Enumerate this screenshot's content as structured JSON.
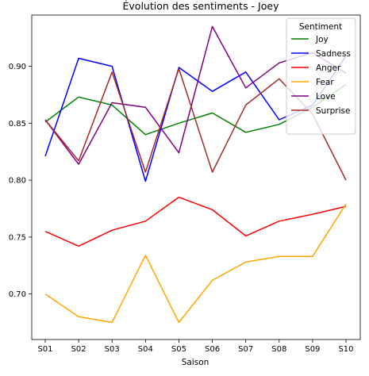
{
  "chart_data": {
    "type": "line",
    "title": "Évolution des sentiments - Joey",
    "xlabel": "Saison",
    "ylabel": "",
    "categories": [
      "S01",
      "S02",
      "S03",
      "S04",
      "S05",
      "S06",
      "S07",
      "S08",
      "S09",
      "S10"
    ],
    "ylim": [
      0.66,
      0.945
    ],
    "yticks": [
      "0.70",
      "0.75",
      "0.80",
      "0.85",
      "0.90"
    ],
    "legend": {
      "title": "Sentiment",
      "placement": "top-right"
    },
    "grid": false,
    "series": [
      {
        "name": "Joy",
        "color": "#008000",
        "values": [
          0.851,
          0.873,
          0.866,
          0.84,
          0.85,
          0.859,
          0.842,
          0.849,
          0.864,
          0.884
        ]
      },
      {
        "name": "Sadness",
        "color": "#0000ff",
        "values": [
          0.821,
          0.907,
          0.9,
          0.799,
          0.899,
          0.878,
          0.895,
          0.853,
          0.866,
          0.909
        ]
      },
      {
        "name": "Anger",
        "color": "#ff0000",
        "values": [
          0.755,
          0.742,
          0.756,
          0.764,
          0.785,
          0.774,
          0.751,
          0.764,
          0.77,
          0.777
        ]
      },
      {
        "name": "Fear",
        "color": "#ffa500",
        "values": [
          0.7,
          0.68,
          0.675,
          0.734,
          0.675,
          0.712,
          0.728,
          0.733,
          0.733,
          0.779
        ]
      },
      {
        "name": "Love",
        "color": "#800080",
        "values": [
          0.853,
          0.814,
          0.868,
          0.864,
          0.824,
          0.935,
          0.881,
          0.903,
          0.912,
          0.894
        ]
      },
      {
        "name": "Surprise",
        "color": "#a52a2a",
        "values": [
          0.853,
          0.817,
          0.895,
          0.807,
          0.898,
          0.807,
          0.866,
          0.889,
          0.858,
          0.8
        ]
      }
    ]
  }
}
